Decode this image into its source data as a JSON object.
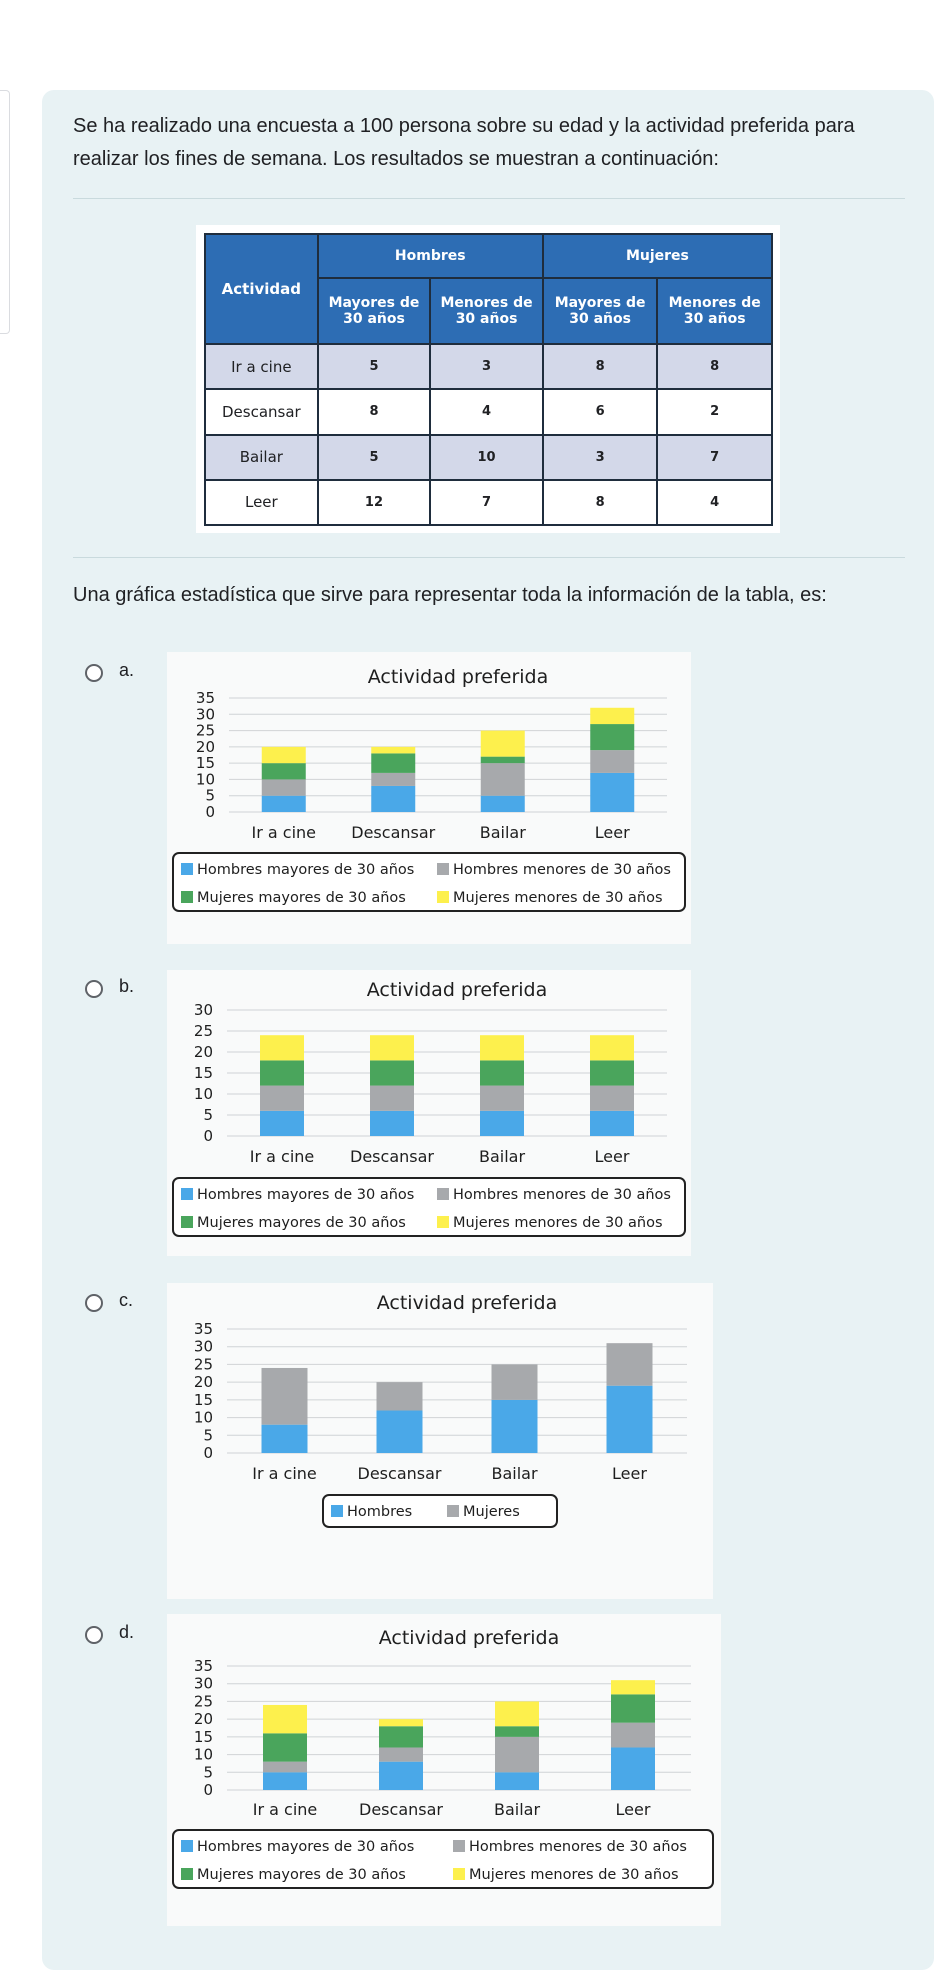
{
  "question": {
    "intro": "Se ha realizado una encuesta a 100 persona sobre su edad y la actividad preferida para realizar los fines de semana. Los resultados se muestran a continuación:",
    "prompt": "Una gráfica estadística que sirve para representar toda la información de la tabla, es:"
  },
  "table": {
    "activity_header": "Actividad",
    "group_men": "Hombres",
    "group_women": "Mujeres",
    "sub_headers": [
      "Mayores de 30 años",
      "Menores de 30 años",
      "Mayores de 30 años",
      "Menores de 30 años"
    ],
    "rows": [
      {
        "activity": "Ir a cine",
        "values": [
          "5",
          "3",
          "8",
          "8"
        ]
      },
      {
        "activity": "Descansar",
        "values": [
          "8",
          "4",
          "6",
          "2"
        ]
      },
      {
        "activity": "Bailar",
        "values": [
          "5",
          "10",
          "3",
          "7"
        ]
      },
      {
        "activity": "Leer",
        "values": [
          "12",
          "7",
          "8",
          "4"
        ]
      }
    ]
  },
  "colors": {
    "blue": "#4aa8e8",
    "gray": "#a7a9ac",
    "green": "#4aa55c",
    "yellow": "#fdf04d"
  },
  "options": [
    {
      "letter": "a."
    },
    {
      "letter": "b."
    },
    {
      "letter": "c."
    },
    {
      "letter": "d."
    }
  ],
  "chart_data": [
    {
      "type": "bar",
      "stacked": true,
      "title": "Actividad preferida",
      "categories": [
        "Ir a cine",
        "Descansar",
        "Bailar",
        "Leer"
      ],
      "yticks": [
        "0",
        "5",
        "10",
        "15",
        "20",
        "25",
        "30",
        "35"
      ],
      "ylim": [
        0,
        35
      ],
      "series": [
        {
          "name": "Hombres mayores de 30 años",
          "color": "#4aa8e8",
          "values": [
            5,
            8,
            5,
            12
          ]
        },
        {
          "name": "Hombres menores de 30 años",
          "color": "#a7a9ac",
          "values": [
            5,
            4,
            10,
            7
          ]
        },
        {
          "name": "Mujeres mayores de 30 años",
          "color": "#4aa55c",
          "values": [
            5,
            6,
            2,
            8
          ]
        },
        {
          "name": "Mujeres menores de 30 años",
          "color": "#fdf04d",
          "values": [
            5,
            2,
            8,
            5
          ]
        }
      ],
      "legend": [
        "Hombres mayores de 30 años",
        "Hombres menores de 30 años",
        "Mujeres mayores de 30 años",
        "Mujeres menores de 30 años"
      ]
    },
    {
      "type": "bar",
      "stacked": true,
      "title": "Actividad preferida",
      "categories": [
        "Ir a cine",
        "Descansar",
        "Bailar",
        "Leer"
      ],
      "yticks": [
        "0",
        "5",
        "10",
        "15",
        "20",
        "25",
        "30"
      ],
      "ylim": [
        0,
        30
      ],
      "series": [
        {
          "name": "Hombres mayores de 30 años",
          "color": "#4aa8e8",
          "values": [
            6,
            6,
            6,
            6
          ]
        },
        {
          "name": "Hombres menores de 30 años",
          "color": "#a7a9ac",
          "values": [
            6,
            6,
            6,
            6
          ]
        },
        {
          "name": "Mujeres mayores de 30 años",
          "color": "#4aa55c",
          "values": [
            6,
            6,
            6,
            6
          ]
        },
        {
          "name": "Mujeres menores de 30 años",
          "color": "#fdf04d",
          "values": [
            6,
            6,
            6,
            6
          ]
        }
      ],
      "legend": [
        "Hombres mayores de 30 años",
        "Hombres menores de 30 años",
        "Mujeres mayores de 30 años",
        "Mujeres menores de 30 años"
      ]
    },
    {
      "type": "bar",
      "stacked": true,
      "title": "Actividad preferida",
      "categories": [
        "Ir a cine",
        "Descansar",
        "Bailar",
        "Leer"
      ],
      "yticks": [
        "0",
        "5",
        "10",
        "15",
        "20",
        "25",
        "30",
        "35"
      ],
      "ylim": [
        0,
        35
      ],
      "series": [
        {
          "name": "Hombres",
          "color": "#4aa8e8",
          "values": [
            8,
            12,
            15,
            19
          ]
        },
        {
          "name": "Mujeres",
          "color": "#a7a9ac",
          "values": [
            16,
            8,
            10,
            12
          ]
        }
      ],
      "legend": [
        "Hombres",
        "Mujeres"
      ]
    },
    {
      "type": "bar",
      "stacked": true,
      "title": "Actividad preferida",
      "categories": [
        "Ir a cine",
        "Descansar",
        "Bailar",
        "Leer"
      ],
      "yticks": [
        "0",
        "5",
        "10",
        "15",
        "20",
        "25",
        "30",
        "35"
      ],
      "ylim": [
        0,
        35
      ],
      "series": [
        {
          "name": "Hombres mayores de 30 años",
          "color": "#4aa8e8",
          "values": [
            5,
            8,
            5,
            12
          ]
        },
        {
          "name": "Hombres menores de 30 años",
          "color": "#a7a9ac",
          "values": [
            3,
            4,
            10,
            7
          ]
        },
        {
          "name": "Mujeres mayores de 30 años",
          "color": "#4aa55c",
          "values": [
            8,
            6,
            3,
            8
          ]
        },
        {
          "name": "Mujeres menores de 30 años",
          "color": "#fdf04d",
          "values": [
            8,
            2,
            7,
            4
          ]
        }
      ],
      "legend": [
        "Hombres mayores de 30 años",
        "Hombres menores de 30 años",
        "Mujeres mayores de 30 años",
        "Mujeres menores de 30 años"
      ]
    }
  ]
}
